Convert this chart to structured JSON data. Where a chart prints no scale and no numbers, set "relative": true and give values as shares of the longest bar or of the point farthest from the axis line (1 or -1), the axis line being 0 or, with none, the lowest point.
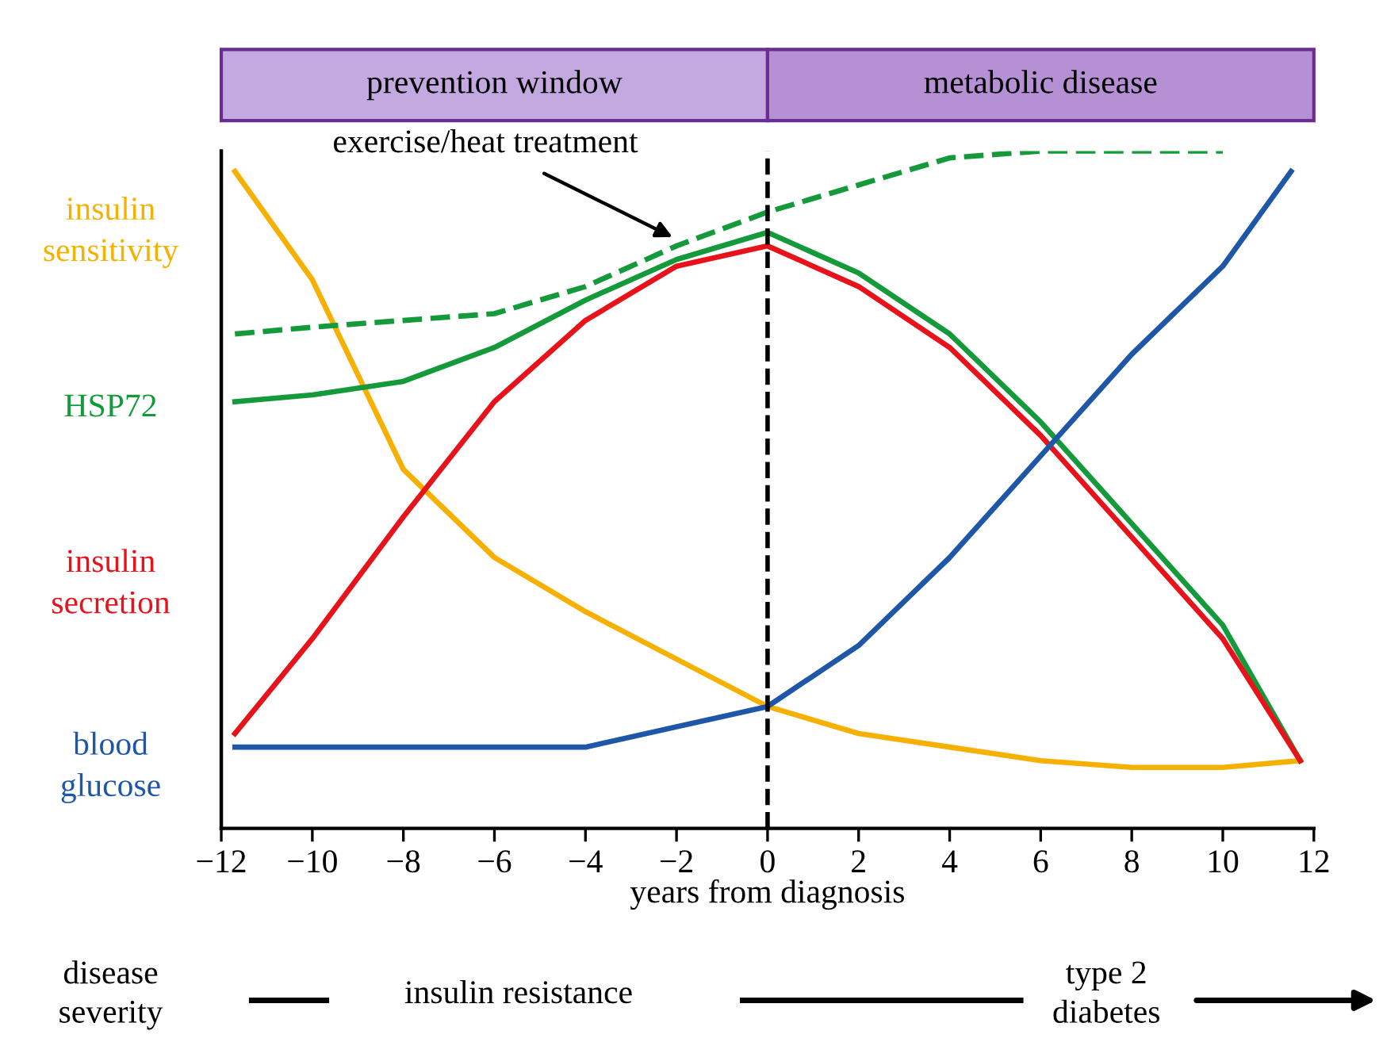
{
  "chart_data": {
    "type": "line",
    "relative": true,
    "xlabel": "years from diagnosis",
    "xlim": [
      -12,
      12
    ],
    "xticks": [
      {
        "value": -12,
        "label": "−12"
      },
      {
        "value": -10,
        "label": "−10"
      },
      {
        "value": -8,
        "label": "−8"
      },
      {
        "value": -6,
        "label": "−6"
      },
      {
        "value": -4,
        "label": "−4"
      },
      {
        "value": -2,
        "label": "−2"
      },
      0,
      2,
      4,
      6,
      8,
      10,
      12
    ],
    "grid": false,
    "legend": false,
    "tick_labels": "x",
    "series": [
      {
        "name": "insulin\nsensitivity",
        "color": "#f5b000",
        "line_style": "solid",
        "x": [
          -11.7,
          -10,
          -8,
          -6,
          -4,
          -2,
          0,
          2,
          4,
          6,
          8,
          10,
          11.7
        ],
        "values": [
          0.97,
          0.81,
          0.53,
          0.4,
          0.32,
          0.25,
          0.18,
          0.14,
          0.12,
          0.1,
          0.09,
          0.09,
          0.1
        ]
      },
      {
        "name": "HSP72",
        "color": "#149a3a",
        "line_style": "solid",
        "x": [
          -11.7,
          -10,
          -8,
          -6,
          -4,
          -2,
          0,
          2,
          4,
          6,
          8,
          10,
          11.7
        ],
        "values": [
          0.63,
          0.64,
          0.66,
          0.71,
          0.78,
          0.84,
          0.88,
          0.82,
          0.73,
          0.6,
          0.45,
          0.3,
          0.1
        ]
      },
      {
        "color": "#149a3a",
        "line_style": "dashed",
        "x": [
          -11.7,
          -10,
          -8,
          -6,
          -4,
          -2,
          0,
          2,
          4,
          6,
          8,
          10
        ],
        "values": [
          0.73,
          0.74,
          0.75,
          0.76,
          0.8,
          0.86,
          0.91,
          0.95,
          0.99,
          1.0,
          1.0,
          1.0
        ]
      },
      {
        "name": "insulin\nsecretion",
        "color": "#e8121b",
        "line_style": "solid",
        "x": [
          -11.7,
          -10,
          -8,
          -6,
          -4,
          -2,
          0,
          2,
          4,
          6,
          8,
          10,
          11.7
        ],
        "values": [
          0.14,
          0.28,
          0.46,
          0.63,
          0.75,
          0.83,
          0.86,
          0.8,
          0.71,
          0.58,
          0.43,
          0.28,
          0.1
        ]
      },
      {
        "name": "blood\nglucose",
        "color": "#1f57a8",
        "line_style": "solid",
        "x": [
          -11.7,
          -10,
          -8,
          -6,
          -4,
          -2,
          0,
          2,
          4,
          6,
          8,
          10,
          11.5
        ],
        "values": [
          0.12,
          0.12,
          0.12,
          0.12,
          0.12,
          0.15,
          0.18,
          0.27,
          0.4,
          0.55,
          0.7,
          0.83,
          0.97
        ]
      }
    ],
    "ref_lines": [
      {
        "axis": "x",
        "value": 0,
        "color": "#000000",
        "line_style": "dashed"
      }
    ],
    "annotations": [
      {
        "text": "exercise/heat treatment",
        "x": -2,
        "y": 0.87
      },
      "prevention window",
      "metabolic disease",
      "disease\nseverity",
      "insulin resistance",
      "type 2\ndiabetes"
    ]
  }
}
